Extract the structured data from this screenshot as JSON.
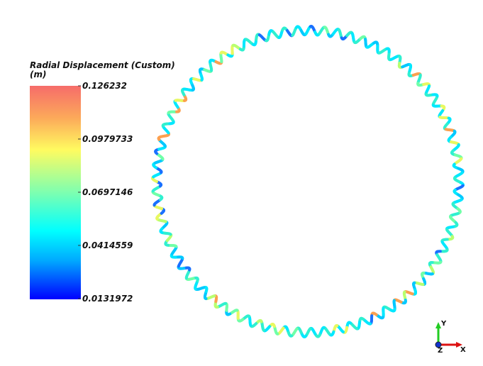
{
  "legend": {
    "title": "Radial Displacement (Custom)",
    "unit": "(m)",
    "ticks": [
      0.126232,
      0.0979733,
      0.0697146,
      0.0414559,
      0.0131972
    ]
  },
  "triad": {
    "x": "X",
    "y": "Y",
    "z": "Z"
  }
}
